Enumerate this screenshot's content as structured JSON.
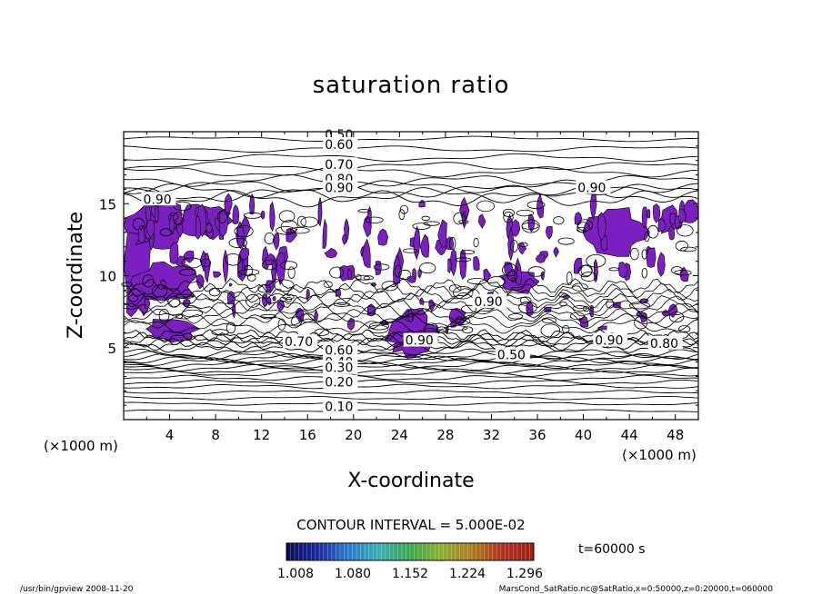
{
  "chart_data": {
    "type": "contour",
    "title": "saturation ratio",
    "xlabel": "X-coordinate",
    "ylabel": "Z-coordinate",
    "x_unit": "(×1000 m)",
    "x_unit_right": "(×1000 m)",
    "xlim": [
      0,
      50
    ],
    "ylim": [
      0,
      20
    ],
    "x_ticks": [
      4,
      8,
      12,
      16,
      20,
      24,
      28,
      32,
      36,
      40,
      44,
      48
    ],
    "y_ticks": [
      5,
      10,
      15
    ],
    "contour_interval_label": "CONTOUR INTERVAL = 5.000E-02",
    "contour_labels": [
      {
        "text": "0.50",
        "x": 17.5,
        "z": 19.5
      },
      {
        "text": "0.60",
        "x": 17.5,
        "z": 18.8
      },
      {
        "text": "0.70",
        "x": 17.5,
        "z": 17.4
      },
      {
        "text": "0.80",
        "x": 17.5,
        "z": 16.4
      },
      {
        "text": "0.90",
        "x": 17.5,
        "z": 15.8
      },
      {
        "text": "0.90",
        "x": 39.5,
        "z": 15.8
      },
      {
        "text": "0.90",
        "x": 1.7,
        "z": 15.0
      },
      {
        "text": "0.90",
        "x": 30.5,
        "z": 7.9
      },
      {
        "text": "0.90",
        "x": 24.5,
        "z": 5.2
      },
      {
        "text": "0.90",
        "x": 41.0,
        "z": 5.2
      },
      {
        "text": "0.70",
        "x": 14.0,
        "z": 5.1
      },
      {
        "text": "0.80",
        "x": 45.8,
        "z": 5.0
      },
      {
        "text": "0.50",
        "x": 32.5,
        "z": 4.2
      },
      {
        "text": "0.60",
        "x": 17.5,
        "z": 4.5
      },
      {
        "text": "0.40",
        "x": 17.5,
        "z": 3.7
      },
      {
        "text": "0.30",
        "x": 17.5,
        "z": 3.3
      },
      {
        "text": "0.20",
        "x": 17.5,
        "z": 2.3
      },
      {
        "text": "0.10",
        "x": 17.5,
        "z": 0.6
      }
    ],
    "shading": {
      "levels_min": 1.0,
      "colorbar_labels": [
        "1.008",
        "1.080",
        "1.152",
        "1.224",
        "1.296"
      ],
      "colorbar_stops": [
        "#0a0a50",
        "#1a2aa0",
        "#2a7acc",
        "#39b0b0",
        "#3aa84a",
        "#8ab030",
        "#b07a20",
        "#b03020",
        "#a02018"
      ],
      "fill_color": "#7a1fc0"
    },
    "time_label": "t=60000 s"
  },
  "footer": {
    "left": "/usr/bin/gpview   2008-11-20",
    "right": "MarsCond_SatRatio.nc@SatRatio,x=0:50000,z=0:20000,t=060000"
  }
}
